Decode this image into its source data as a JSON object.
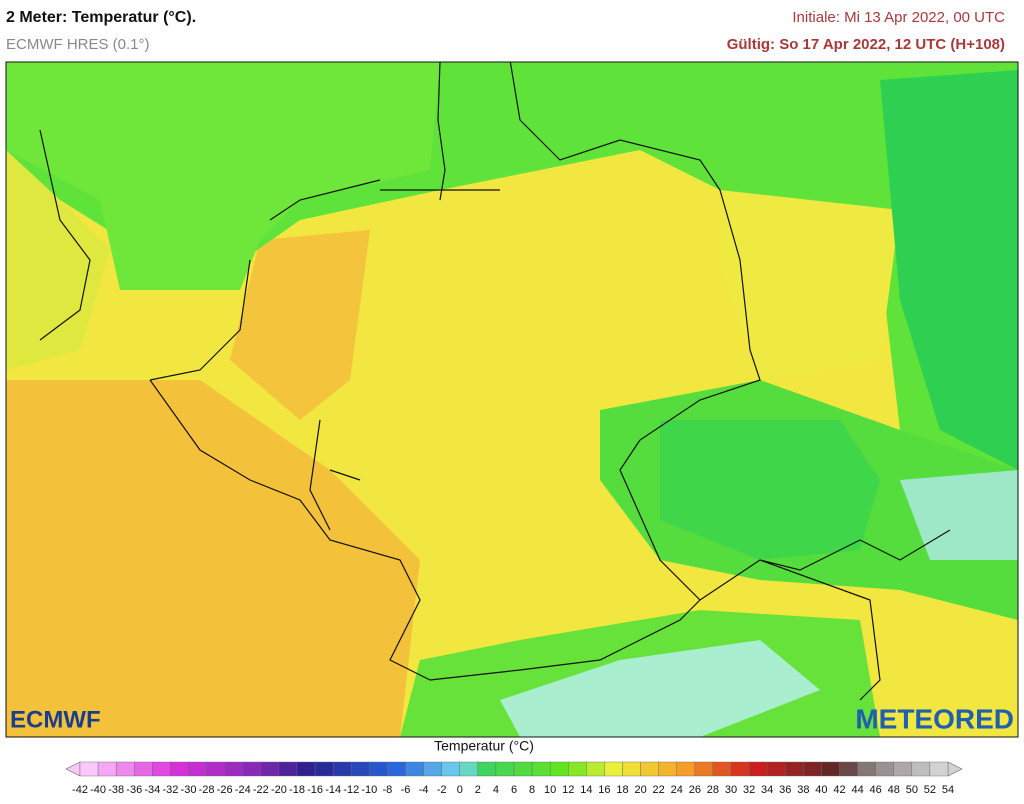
{
  "header": {
    "title": "2 Meter: Temperatur (°C).",
    "subtitle": "ECMWF HRES (0.1°)",
    "initial": "Initiale: Mi 13 Apr 2022, 00 UTC",
    "valid": "Gültig: So 17 Apr 2022, 12 UTC (H+108)"
  },
  "logos": {
    "left": "ECMWF",
    "right": "METEORED"
  },
  "legend": {
    "title": "Temperatur (°C)",
    "ticks": [
      -42,
      -40,
      -38,
      -36,
      -34,
      -32,
      -30,
      -28,
      -26,
      -24,
      -22,
      -20,
      -18,
      -16,
      -14,
      -12,
      -10,
      -8,
      -6,
      -4,
      -2,
      0,
      2,
      4,
      6,
      8,
      10,
      12,
      14,
      16,
      18,
      20,
      22,
      24,
      26,
      28,
      30,
      32,
      34,
      36,
      38,
      40,
      42,
      44,
      46,
      48,
      50,
      52,
      54
    ]
  }
}
